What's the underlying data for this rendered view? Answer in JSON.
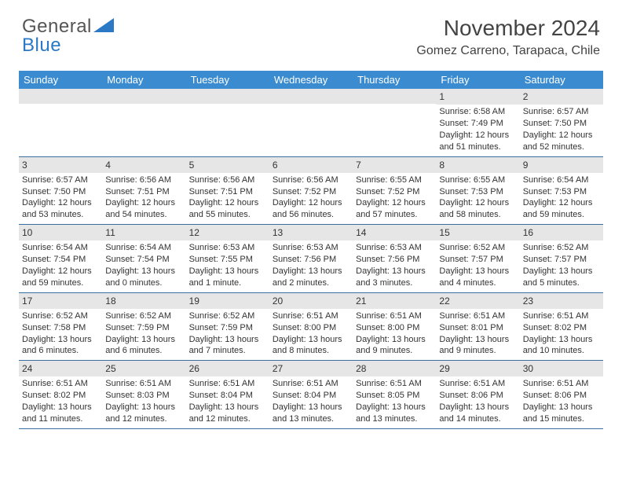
{
  "logo": {
    "word1": "General",
    "word2": "Blue"
  },
  "title": {
    "month": "November 2024",
    "location": "Gomez Carreno, Tarapaca, Chile"
  },
  "colors": {
    "brand_blue": "#2b78c4",
    "header_blue": "#3b8bd0",
    "band_gray": "#e6e6e6",
    "rule_blue": "#3b6fa0",
    "text": "#333333"
  },
  "dow": [
    "Sunday",
    "Monday",
    "Tuesday",
    "Wednesday",
    "Thursday",
    "Friday",
    "Saturday"
  ],
  "weeks": [
    [
      null,
      null,
      null,
      null,
      null,
      {
        "n": "1",
        "sunrise": "6:58 AM",
        "sunset": "7:49 PM",
        "daylight": "12 hours and 51 minutes."
      },
      {
        "n": "2",
        "sunrise": "6:57 AM",
        "sunset": "7:50 PM",
        "daylight": "12 hours and 52 minutes."
      }
    ],
    [
      {
        "n": "3",
        "sunrise": "6:57 AM",
        "sunset": "7:50 PM",
        "daylight": "12 hours and 53 minutes."
      },
      {
        "n": "4",
        "sunrise": "6:56 AM",
        "sunset": "7:51 PM",
        "daylight": "12 hours and 54 minutes."
      },
      {
        "n": "5",
        "sunrise": "6:56 AM",
        "sunset": "7:51 PM",
        "daylight": "12 hours and 55 minutes."
      },
      {
        "n": "6",
        "sunrise": "6:56 AM",
        "sunset": "7:52 PM",
        "daylight": "12 hours and 56 minutes."
      },
      {
        "n": "7",
        "sunrise": "6:55 AM",
        "sunset": "7:52 PM",
        "daylight": "12 hours and 57 minutes."
      },
      {
        "n": "8",
        "sunrise": "6:55 AM",
        "sunset": "7:53 PM",
        "daylight": "12 hours and 58 minutes."
      },
      {
        "n": "9",
        "sunrise": "6:54 AM",
        "sunset": "7:53 PM",
        "daylight": "12 hours and 59 minutes."
      }
    ],
    [
      {
        "n": "10",
        "sunrise": "6:54 AM",
        "sunset": "7:54 PM",
        "daylight": "12 hours and 59 minutes."
      },
      {
        "n": "11",
        "sunrise": "6:54 AM",
        "sunset": "7:54 PM",
        "daylight": "13 hours and 0 minutes."
      },
      {
        "n": "12",
        "sunrise": "6:53 AM",
        "sunset": "7:55 PM",
        "daylight": "13 hours and 1 minute."
      },
      {
        "n": "13",
        "sunrise": "6:53 AM",
        "sunset": "7:56 PM",
        "daylight": "13 hours and 2 minutes."
      },
      {
        "n": "14",
        "sunrise": "6:53 AM",
        "sunset": "7:56 PM",
        "daylight": "13 hours and 3 minutes."
      },
      {
        "n": "15",
        "sunrise": "6:52 AM",
        "sunset": "7:57 PM",
        "daylight": "13 hours and 4 minutes."
      },
      {
        "n": "16",
        "sunrise": "6:52 AM",
        "sunset": "7:57 PM",
        "daylight": "13 hours and 5 minutes."
      }
    ],
    [
      {
        "n": "17",
        "sunrise": "6:52 AM",
        "sunset": "7:58 PM",
        "daylight": "13 hours and 6 minutes."
      },
      {
        "n": "18",
        "sunrise": "6:52 AM",
        "sunset": "7:59 PM",
        "daylight": "13 hours and 6 minutes."
      },
      {
        "n": "19",
        "sunrise": "6:52 AM",
        "sunset": "7:59 PM",
        "daylight": "13 hours and 7 minutes."
      },
      {
        "n": "20",
        "sunrise": "6:51 AM",
        "sunset": "8:00 PM",
        "daylight": "13 hours and 8 minutes."
      },
      {
        "n": "21",
        "sunrise": "6:51 AM",
        "sunset": "8:00 PM",
        "daylight": "13 hours and 9 minutes."
      },
      {
        "n": "22",
        "sunrise": "6:51 AM",
        "sunset": "8:01 PM",
        "daylight": "13 hours and 9 minutes."
      },
      {
        "n": "23",
        "sunrise": "6:51 AM",
        "sunset": "8:02 PM",
        "daylight": "13 hours and 10 minutes."
      }
    ],
    [
      {
        "n": "24",
        "sunrise": "6:51 AM",
        "sunset": "8:02 PM",
        "daylight": "13 hours and 11 minutes."
      },
      {
        "n": "25",
        "sunrise": "6:51 AM",
        "sunset": "8:03 PM",
        "daylight": "13 hours and 12 minutes."
      },
      {
        "n": "26",
        "sunrise": "6:51 AM",
        "sunset": "8:04 PM",
        "daylight": "13 hours and 12 minutes."
      },
      {
        "n": "27",
        "sunrise": "6:51 AM",
        "sunset": "8:04 PM",
        "daylight": "13 hours and 13 minutes."
      },
      {
        "n": "28",
        "sunrise": "6:51 AM",
        "sunset": "8:05 PM",
        "daylight": "13 hours and 13 minutes."
      },
      {
        "n": "29",
        "sunrise": "6:51 AM",
        "sunset": "8:06 PM",
        "daylight": "13 hours and 14 minutes."
      },
      {
        "n": "30",
        "sunrise": "6:51 AM",
        "sunset": "8:06 PM",
        "daylight": "13 hours and 15 minutes."
      }
    ]
  ],
  "labels": {
    "sunrise": "Sunrise:",
    "sunset": "Sunset:",
    "daylight": "Daylight:"
  }
}
